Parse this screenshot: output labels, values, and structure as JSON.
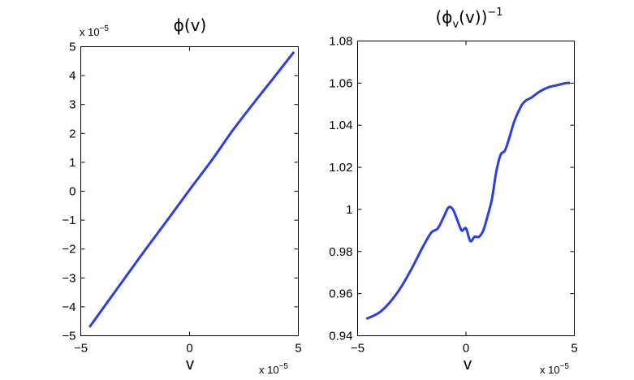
{
  "colors": {
    "line": "#2b3ee6",
    "axes": "#000000",
    "background": "#ffffff"
  },
  "chart_data": [
    {
      "type": "line",
      "title": "ϕ(v)",
      "xlabel": "v",
      "ylabel": "",
      "xlim": [
        -5,
        5
      ],
      "ylim": [
        -5,
        5
      ],
      "x_exponent_note": {
        "prefix": "x 10",
        "exponent": "−5"
      },
      "y_exponent_note": {
        "prefix": "x 10",
        "exponent": "−5"
      },
      "xticks": [
        "−5",
        "0",
        "5"
      ],
      "yticks": [
        "−5",
        "−4",
        "−3",
        "−2",
        "−1",
        "0",
        "1",
        "2",
        "3",
        "4",
        "5"
      ],
      "xtick_values": [
        -5,
        0,
        5
      ],
      "ytick_values": [
        -5,
        -4,
        -3,
        -2,
        -1,
        0,
        1,
        2,
        3,
        4,
        5
      ],
      "grid": false,
      "series": [
        {
          "x": [
            -4.6,
            -3,
            -2,
            -1,
            0,
            1,
            2,
            3,
            4,
            4.8
          ],
          "y": [
            -4.7,
            -3.03,
            -1.99,
            -0.98,
            0.05,
            1.05,
            2.12,
            3.1,
            4.05,
            4.82
          ]
        }
      ]
    },
    {
      "type": "line",
      "title": "(ϕ",
      "title_sub": "v",
      "title_mid": "(v))",
      "title_sup": "−1",
      "xlabel": "v",
      "ylabel": "",
      "xlim": [
        -5,
        5
      ],
      "ylim": [
        0.94,
        1.08
      ],
      "x_exponent_note": {
        "prefix": "x 10",
        "exponent": "−5"
      },
      "xticks": [
        "−5",
        "0",
        "5"
      ],
      "yticks": [
        "0.94",
        "0.96",
        "0.98",
        "1",
        "1.02",
        "1.04",
        "1.06",
        "1.08"
      ],
      "xtick_values": [
        -5,
        0,
        5
      ],
      "ytick_values": [
        0.94,
        0.96,
        0.98,
        1.0,
        1.02,
        1.04,
        1.06,
        1.08
      ],
      "grid": false,
      "series": [
        {
          "x": [
            -4.6,
            -4.0,
            -3.5,
            -3.0,
            -2.5,
            -2.0,
            -1.6,
            -1.3,
            -1.0,
            -0.8,
            -0.6,
            -0.4,
            -0.2,
            0.0,
            0.2,
            0.4,
            0.6,
            0.8,
            1.0,
            1.2,
            1.4,
            1.6,
            1.8,
            2.0,
            2.2,
            2.4,
            2.6,
            2.8,
            3.0,
            3.4,
            3.8,
            4.2,
            4.6,
            4.8
          ],
          "y": [
            0.948,
            0.951,
            0.956,
            0.963,
            0.972,
            0.982,
            0.989,
            0.991,
            0.997,
            1.001,
            1.0,
            0.995,
            0.99,
            0.991,
            0.985,
            0.987,
            0.987,
            0.99,
            0.997,
            1.005,
            1.018,
            1.026,
            1.028,
            1.034,
            1.041,
            1.046,
            1.05,
            1.052,
            1.053,
            1.056,
            1.058,
            1.059,
            1.06,
            1.06
          ]
        }
      ]
    }
  ]
}
